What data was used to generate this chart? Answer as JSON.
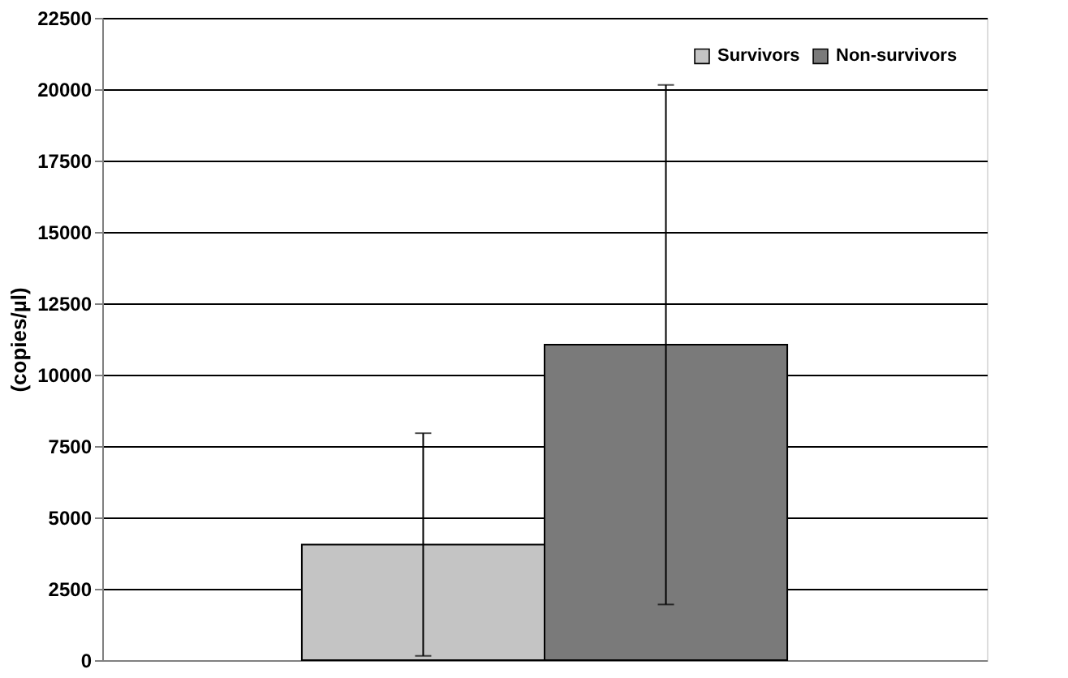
{
  "chart_data": {
    "type": "bar",
    "ylabel": "(copies/µl)",
    "categories": [
      null
    ],
    "series": [
      {
        "name": "Survivors",
        "color": "#c4c4c4",
        "values": [
          4050
        ],
        "errors": [
          3900
        ]
      },
      {
        "name": "Non-survivors",
        "color": "#7a7a7a",
        "values": [
          11050
        ],
        "errors": [
          9100
        ]
      }
    ],
    "ylim": [
      0,
      22500
    ],
    "yticks": [
      0,
      2500,
      5000,
      7500,
      10000,
      12500,
      15000,
      17500,
      20000,
      22500
    ],
    "grid": "y",
    "legend": "top right"
  }
}
